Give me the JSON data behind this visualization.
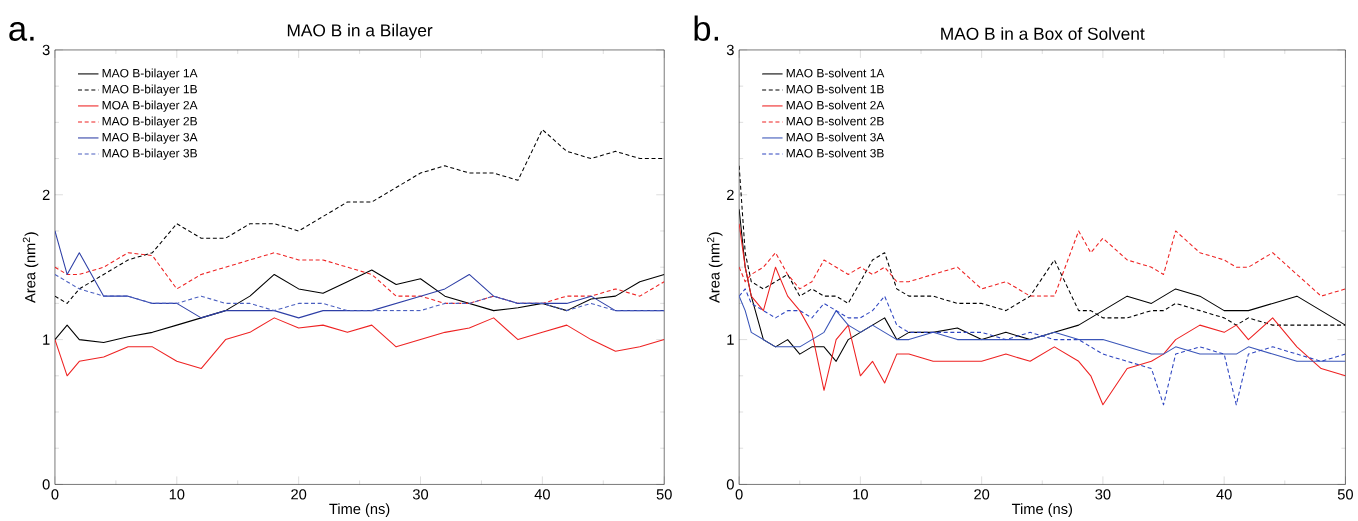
{
  "chart_data": [
    {
      "type": "line",
      "title": "MAO B in a Bilayer",
      "xlabel": "Time (ns)",
      "ylabel": "Area (nm$^{2}$)",
      "annotations": [
        "a."
      ],
      "xlim": [
        0,
        50
      ],
      "ylim": [
        0,
        3
      ],
      "xticks": [
        0,
        {
          "value": 5,
          "label": null
        },
        10,
        {
          "value": 15,
          "label": null
        },
        20,
        {
          "value": 25,
          "label": null
        },
        30,
        {
          "value": 35,
          "label": null
        },
        40,
        {
          "value": 45,
          "label": null
        },
        50
      ],
      "yticks": [
        0,
        {
          "value": 0.25,
          "label": null
        },
        {
          "value": 0.5,
          "label": null
        },
        {
          "value": 0.75,
          "label": null
        },
        1,
        {
          "value": 1.25,
          "label": null
        },
        {
          "value": 1.5,
          "label": null
        },
        {
          "value": 1.75,
          "label": null
        },
        2,
        {
          "value": 2.25,
          "label": null
        },
        {
          "value": 2.5,
          "label": null
        },
        {
          "value": 2.75,
          "label": null
        },
        3
      ],
      "legend": "top left",
      "grid": false,
      "x": [
        0,
        1,
        2,
        4,
        6,
        8,
        10,
        12,
        14,
        16,
        18,
        20,
        22,
        24,
        26,
        28,
        30,
        32,
        34,
        36,
        38,
        40,
        42,
        44,
        46,
        48,
        50
      ],
      "series": [
        {
          "name": "MAO B-bilayer 1A",
          "color": "#000000",
          "line_style": "solid",
          "values": [
            1.0,
            1.1,
            1.0,
            0.98,
            1.02,
            1.05,
            1.1,
            1.15,
            1.2,
            1.3,
            1.45,
            1.35,
            1.32,
            1.4,
            1.48,
            1.38,
            1.42,
            1.3,
            1.25,
            1.2,
            1.22,
            1.25,
            1.2,
            1.28,
            1.3,
            1.4,
            1.45
          ]
        },
        {
          "name": "MAO B-bilayer 1B",
          "color": "#000000",
          "line_style": "dashed",
          "values": [
            1.3,
            1.25,
            1.35,
            1.45,
            1.55,
            1.6,
            1.8,
            1.7,
            1.7,
            1.8,
            1.8,
            1.75,
            1.85,
            1.95,
            1.95,
            2.05,
            2.15,
            2.2,
            2.15,
            2.15,
            2.1,
            2.45,
            2.3,
            2.25,
            2.3,
            2.25,
            2.25
          ]
        },
        {
          "name": "MOA B-bilayer 2A",
          "color": "#ee2222",
          "line_style": "solid",
          "values": [
            1.0,
            0.75,
            0.85,
            0.88,
            0.95,
            0.95,
            0.85,
            0.8,
            1.0,
            1.05,
            1.15,
            1.08,
            1.1,
            1.05,
            1.1,
            0.95,
            1.0,
            1.05,
            1.08,
            1.15,
            1.0,
            1.05,
            1.1,
            1.0,
            0.92,
            0.95,
            1.0
          ]
        },
        {
          "name": "MAO B-bilayer 2B",
          "color": "#ee2222",
          "line_style": "dashed",
          "values": [
            1.5,
            1.45,
            1.45,
            1.5,
            1.6,
            1.58,
            1.35,
            1.45,
            1.5,
            1.55,
            1.6,
            1.55,
            1.55,
            1.5,
            1.45,
            1.3,
            1.3,
            1.25,
            1.25,
            1.3,
            1.25,
            1.25,
            1.3,
            1.3,
            1.35,
            1.3,
            1.4
          ]
        },
        {
          "name": "MAO B-bilayer 3A",
          "color": "#2e3fa6",
          "line_style": "solid",
          "values": [
            1.75,
            1.45,
            1.6,
            1.3,
            1.3,
            1.25,
            1.25,
            1.15,
            1.2,
            1.2,
            1.2,
            1.15,
            1.2,
            1.2,
            1.2,
            1.25,
            1.3,
            1.35,
            1.45,
            1.3,
            1.25,
            1.25,
            1.25,
            1.3,
            1.2,
            1.2,
            1.2
          ]
        },
        {
          "name": "MAO B-bilayer 3B",
          "color": "#4a5fc0",
          "line_style": "dashed",
          "values": [
            1.45,
            1.4,
            1.35,
            1.3,
            1.3,
            1.25,
            1.25,
            1.3,
            1.25,
            1.25,
            1.2,
            1.25,
            1.25,
            1.2,
            1.2,
            1.2,
            1.2,
            1.25,
            1.25,
            1.3,
            1.25,
            1.25,
            1.2,
            1.25,
            1.2,
            1.2,
            1.2
          ]
        }
      ]
    },
    {
      "type": "line",
      "title": "MAO B in a Box of Solvent",
      "xlabel": "Time (ns)",
      "ylabel": "Area (nm$^{2}$)",
      "annotations": [
        "b."
      ],
      "xlim": [
        0,
        50
      ],
      "ylim": [
        0,
        3
      ],
      "xticks": [
        0,
        {
          "value": 5,
          "label": null
        },
        10,
        {
          "value": 15,
          "label": null
        },
        20,
        {
          "value": 25,
          "label": null
        },
        30,
        {
          "value": 35,
          "label": null
        },
        40,
        {
          "value": 45,
          "label": null
        },
        50
      ],
      "yticks": [
        0,
        {
          "value": 0.25,
          "label": null
        },
        {
          "value": 0.5,
          "label": null
        },
        {
          "value": 0.75,
          "label": null
        },
        1,
        {
          "value": 1.25,
          "label": null
        },
        {
          "value": 1.5,
          "label": null
        },
        {
          "value": 1.75,
          "label": null
        },
        2,
        {
          "value": 2.25,
          "label": null
        },
        {
          "value": 2.5,
          "label": null
        },
        {
          "value": 2.75,
          "label": null
        },
        3
      ],
      "legend": "top left",
      "grid": false,
      "x": [
        0,
        0.5,
        1,
        2,
        3,
        4,
        5,
        6,
        7,
        8,
        9,
        10,
        11,
        12,
        13,
        14,
        16,
        18,
        20,
        22,
        24,
        26,
        28,
        29,
        30,
        32,
        34,
        35,
        36,
        38,
        40,
        41,
        42,
        44,
        46,
        48,
        50
      ],
      "series": [
        {
          "name": "MAO B-solvent 1A",
          "color": "#000000",
          "line_style": "solid",
          "values": [
            1.9,
            1.5,
            1.3,
            1.0,
            0.95,
            1.0,
            0.9,
            0.95,
            0.95,
            0.85,
            1.0,
            1.05,
            1.1,
            1.15,
            1.0,
            1.05,
            1.05,
            1.08,
            1.0,
            1.05,
            1.0,
            1.05,
            1.1,
            1.15,
            1.2,
            1.3,
            1.25,
            1.3,
            1.35,
            1.3,
            1.2,
            1.2,
            1.2,
            1.25,
            1.3,
            1.2,
            1.1
          ]
        },
        {
          "name": "MAO B-solvent 1B",
          "color": "#000000",
          "line_style": "dashed",
          "values": [
            2.2,
            1.6,
            1.4,
            1.35,
            1.4,
            1.45,
            1.3,
            1.35,
            1.3,
            1.3,
            1.25,
            1.4,
            1.55,
            1.6,
            1.35,
            1.3,
            1.3,
            1.25,
            1.25,
            1.2,
            1.3,
            1.55,
            1.2,
            1.2,
            1.15,
            1.15,
            1.2,
            1.2,
            1.25,
            1.2,
            1.15,
            1.1,
            1.15,
            1.1,
            1.1,
            1.1,
            1.1
          ]
        },
        {
          "name": "MAO B-solvent 2A",
          "color": "#ee2222",
          "line_style": "solid",
          "values": [
            1.8,
            1.5,
            1.3,
            1.2,
            1.5,
            1.3,
            1.2,
            1.05,
            0.65,
            1.0,
            1.1,
            0.75,
            0.85,
            0.7,
            0.9,
            0.9,
            0.85,
            0.85,
            0.85,
            0.9,
            0.85,
            0.95,
            0.85,
            0.75,
            0.55,
            0.8,
            0.85,
            0.9,
            1.0,
            1.1,
            1.05,
            1.1,
            1.0,
            1.15,
            0.95,
            0.8,
            0.75
          ]
        },
        {
          "name": "MAO B-solvent 2B",
          "color": "#ee2222",
          "line_style": "dashed",
          "values": [
            1.5,
            1.4,
            1.45,
            1.5,
            1.6,
            1.45,
            1.35,
            1.4,
            1.55,
            1.5,
            1.45,
            1.5,
            1.45,
            1.5,
            1.4,
            1.4,
            1.45,
            1.5,
            1.35,
            1.4,
            1.3,
            1.3,
            1.75,
            1.6,
            1.7,
            1.55,
            1.5,
            1.45,
            1.75,
            1.6,
            1.55,
            1.5,
            1.5,
            1.6,
            1.45,
            1.3,
            1.35
          ]
        },
        {
          "name": "MAO B-solvent 3A",
          "color": "#3a55b8",
          "line_style": "solid",
          "values": [
            1.3,
            1.2,
            1.05,
            1.0,
            0.95,
            0.95,
            0.95,
            1.0,
            1.05,
            1.2,
            1.1,
            1.05,
            1.1,
            1.05,
            1.0,
            1.0,
            1.05,
            1.0,
            1.0,
            1.0,
            1.0,
            1.05,
            1.0,
            1.0,
            1.0,
            0.95,
            0.9,
            0.9,
            0.95,
            0.9,
            0.9,
            0.9,
            0.95,
            0.9,
            0.85,
            0.85,
            0.85
          ]
        },
        {
          "name": "MAO B-solvent 3B",
          "color": "#2e45c0",
          "line_style": "dashed",
          "values": [
            1.3,
            1.35,
            1.25,
            1.2,
            1.15,
            1.2,
            1.2,
            1.15,
            1.25,
            1.2,
            1.15,
            1.15,
            1.2,
            1.3,
            1.1,
            1.05,
            1.05,
            1.05,
            1.05,
            1.0,
            1.05,
            1.0,
            1.0,
            0.95,
            0.9,
            0.85,
            0.8,
            0.55,
            0.9,
            0.95,
            0.9,
            0.55,
            0.9,
            0.95,
            0.9,
            0.85,
            0.9
          ]
        }
      ]
    }
  ]
}
